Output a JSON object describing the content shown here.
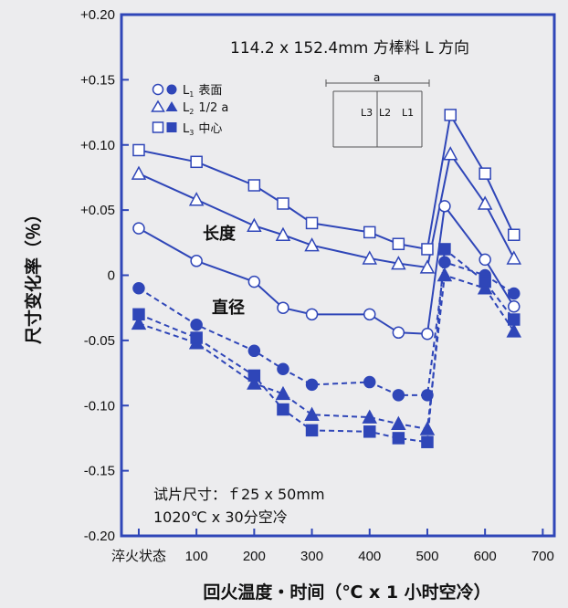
{
  "chart_data": {
    "type": "line",
    "title": "114.2 x 152.4mm 方棒料 L 方向",
    "xlabel": "回火温度・时间（℃ x 1 小时空冷）",
    "ylabel": "尺寸变化率（％）",
    "x_tick_labels": [
      "淬火状态",
      "100",
      "200",
      "300",
      "400",
      "500",
      "600",
      "700"
    ],
    "x_tick_values": [
      0,
      100,
      200,
      300,
      400,
      500,
      600,
      700
    ],
    "y_tick_labels": [
      "+0.20",
      "+0.15",
      "+0.10",
      "+0.05",
      "0",
      "-0.05",
      "-0.10",
      "-0.15",
      "-0.20"
    ],
    "y_tick_values": [
      0.2,
      0.15,
      0.1,
      0.05,
      0,
      -0.05,
      -0.1,
      -0.15,
      -0.2
    ],
    "xlim": [
      -30,
      720
    ],
    "ylim": [
      -0.2,
      0.2
    ],
    "grid": false,
    "legend": {
      "position": "top-left",
      "items": [
        {
          "sym": "L",
          "sub": "1",
          "text": "表面"
        },
        {
          "sym": "L",
          "sub": "2",
          "text": "1/2 a"
        },
        {
          "sym": "L",
          "sub": "3",
          "text": "中心"
        }
      ]
    },
    "inset": {
      "top_label": "a",
      "labels": [
        "L3",
        "L2",
        "L1"
      ]
    },
    "annotations": {
      "length": "长度",
      "diameter": "直径",
      "specimen_line1": "试片尺寸：ｆ25 x 50mm",
      "specimen_line2": "1020℃ x 30分空冷"
    },
    "series": [
      {
        "marker": "circle",
        "filled": false,
        "dashed": false,
        "x": [
          0,
          100,
          200,
          250,
          300,
          400,
          450,
          500,
          530,
          600,
          650
        ],
        "y": [
          0.036,
          0.011,
          -0.005,
          -0.025,
          -0.03,
          -0.03,
          -0.044,
          -0.045,
          0.053,
          0.012,
          -0.024
        ]
      },
      {
        "marker": "triangle",
        "filled": false,
        "dashed": false,
        "x": [
          0,
          100,
          200,
          250,
          300,
          400,
          450,
          500,
          540,
          600,
          650
        ],
        "y": [
          0.078,
          0.058,
          0.038,
          0.031,
          0.023,
          0.013,
          0.009,
          0.006,
          0.093,
          0.055,
          0.013
        ]
      },
      {
        "marker": "square",
        "filled": false,
        "dashed": false,
        "x": [
          0,
          100,
          200,
          250,
          300,
          400,
          450,
          500,
          540,
          600,
          650
        ],
        "y": [
          0.096,
          0.087,
          0.069,
          0.055,
          0.04,
          0.033,
          0.024,
          0.02,
          0.123,
          0.078,
          0.031
        ]
      },
      {
        "marker": "circle",
        "filled": true,
        "dashed": true,
        "x": [
          0,
          100,
          200,
          250,
          300,
          400,
          450,
          500,
          530,
          600,
          650
        ],
        "y": [
          -0.01,
          -0.038,
          -0.058,
          -0.072,
          -0.084,
          -0.082,
          -0.092,
          -0.092,
          0.01,
          0.0,
          -0.014
        ]
      },
      {
        "marker": "triangle",
        "filled": true,
        "dashed": true,
        "x": [
          0,
          100,
          200,
          250,
          300,
          400,
          450,
          500,
          530,
          600,
          650
        ],
        "y": [
          -0.037,
          -0.052,
          -0.083,
          -0.091,
          -0.107,
          -0.109,
          -0.114,
          -0.118,
          0.0,
          -0.01,
          -0.043
        ]
      },
      {
        "marker": "square",
        "filled": true,
        "dashed": true,
        "x": [
          0,
          100,
          200,
          250,
          300,
          400,
          450,
          500,
          530,
          600,
          650
        ],
        "y": [
          -0.03,
          -0.048,
          -0.077,
          -0.103,
          -0.119,
          -0.12,
          -0.125,
          -0.128,
          0.02,
          -0.005,
          -0.034
        ]
      }
    ],
    "colors": {
      "series": "#2f46b8",
      "frame": "#2f46b8",
      "background": "#ececee",
      "text": "#111111"
    }
  }
}
